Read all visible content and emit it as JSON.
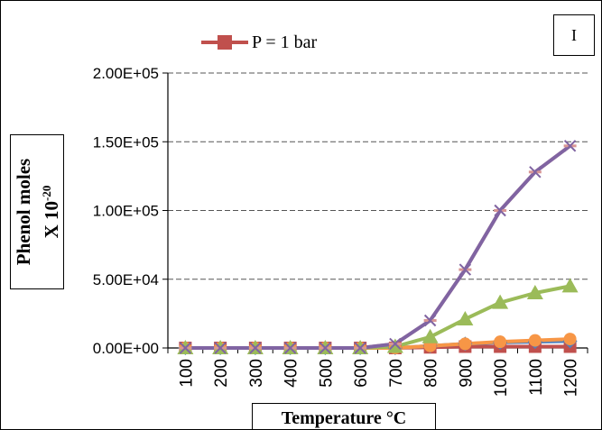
{
  "chart_data": {
    "type": "line",
    "title": "",
    "panel_label": "I",
    "legend": {
      "shown_label": "P = 1 bar",
      "placement": "top-left"
    },
    "xlabel": "Temperature °C",
    "ylabel_line1": "Phenol moles",
    "ylabel_line2": "X 10",
    "ylabel_exponent": "-20",
    "categories": [
      "100",
      "200",
      "300",
      "400",
      "500",
      "600",
      "700",
      "800",
      "900",
      "1000",
      "1100",
      "1200"
    ],
    "y_ticks": [
      "0.00E+00",
      "5.00E+04",
      "1.00E+05",
      "1.50E+05",
      "2.00E+05"
    ],
    "ylim": [
      0,
      200000
    ],
    "grid": true,
    "series": [
      {
        "name": "P = 1 bar",
        "color": "#c0504d",
        "marker": "square",
        "values": [
          0,
          0,
          0,
          0,
          0,
          0,
          0,
          500,
          1000,
          1000,
          1000,
          1000
        ]
      },
      {
        "color": "#4f81bd",
        "marker": "diamond",
        "values": [
          0,
          0,
          0,
          0,
          0,
          0,
          0,
          1500,
          3000,
          4000,
          4500,
          5000
        ]
      },
      {
        "color": "#f79646",
        "marker": "circle",
        "values": [
          0,
          0,
          0,
          0,
          0,
          0,
          0,
          1500,
          3000,
          4500,
          5500,
          6500
        ]
      },
      {
        "color": "#9bbb59",
        "marker": "triangle",
        "values": [
          0,
          0,
          0,
          0,
          0,
          0,
          1000,
          8000,
          21000,
          33000,
          40000,
          45000
        ]
      },
      {
        "color": "#d99694",
        "marker": "dash",
        "values": [
          0,
          0,
          0,
          0,
          0,
          0,
          3000,
          20000,
          57000,
          100000,
          128000,
          147000
        ]
      },
      {
        "color": "#8064a2",
        "marker": "x",
        "values": [
          0,
          0,
          0,
          0,
          0,
          0,
          3000,
          20000,
          57000,
          100000,
          128000,
          147000
        ]
      }
    ]
  }
}
